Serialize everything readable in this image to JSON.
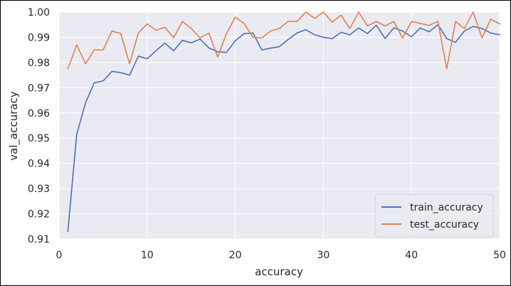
{
  "chart_data": {
    "type": "line",
    "xlabel": "accuracy",
    "ylabel": "val_accuracy",
    "xlim": [
      0,
      50
    ],
    "ylim": [
      0.91,
      1.0
    ],
    "xticks": [
      0,
      10,
      20,
      30,
      40,
      50
    ],
    "yticks": [
      0.91,
      0.92,
      0.93,
      0.94,
      0.95,
      0.96,
      0.97,
      0.98,
      0.99,
      1.0
    ],
    "ytick_labels": [
      "0.91",
      "0.92",
      "0.93",
      "0.94",
      "0.95",
      "0.96",
      "0.97",
      "0.98",
      "0.99",
      "1.00"
    ],
    "xtick_labels": [
      "0",
      "10",
      "20",
      "30",
      "40",
      "50"
    ],
    "grid": true,
    "background": "#eaeaf2",
    "legend_position": "lower-right",
    "x": [
      1,
      2,
      3,
      4,
      5,
      6,
      7,
      8,
      9,
      10,
      11,
      12,
      13,
      14,
      15,
      16,
      17,
      18,
      19,
      20,
      21,
      22,
      23,
      24,
      25,
      26,
      27,
      28,
      29,
      30,
      31,
      32,
      33,
      34,
      35,
      36,
      37,
      38,
      39,
      40,
      41,
      42,
      43,
      44,
      45,
      46,
      47,
      48,
      49,
      50
    ],
    "series": [
      {
        "name": "train_accuracy",
        "color": "#4c72b0",
        "values": [
          0.913,
          0.9515,
          0.964,
          0.972,
          0.9727,
          0.9765,
          0.976,
          0.975,
          0.9825,
          0.9815,
          0.9847,
          0.9877,
          0.9847,
          0.9888,
          0.9878,
          0.9893,
          0.9858,
          0.9843,
          0.984,
          0.9886,
          0.9915,
          0.9917,
          0.985,
          0.9857,
          0.9863,
          0.9891,
          0.9917,
          0.993,
          0.991,
          0.99,
          0.9895,
          0.992,
          0.991,
          0.9937,
          0.9915,
          0.9948,
          0.9895,
          0.9938,
          0.9925,
          0.9902,
          0.9937,
          0.9922,
          0.995,
          0.9895,
          0.988,
          0.9925,
          0.9943,
          0.9935,
          0.9917,
          0.991
        ]
      },
      {
        "name": "test_accuracy",
        "color": "#dd8452",
        "values": [
          0.9775,
          0.987,
          0.9795,
          0.985,
          0.985,
          0.9925,
          0.9915,
          0.9795,
          0.9918,
          0.9953,
          0.9928,
          0.994,
          0.9898,
          0.9963,
          0.9935,
          0.9898,
          0.9917,
          0.9822,
          0.9915,
          0.998,
          0.9955,
          0.99,
          0.9897,
          0.9925,
          0.9935,
          0.9963,
          0.9963,
          1.0,
          0.9975,
          1.0,
          0.996,
          0.9988,
          0.9935,
          1.0,
          0.9945,
          0.9963,
          0.9945,
          0.9963,
          0.9897,
          0.9963,
          0.9955,
          0.9947,
          0.9963,
          0.9775,
          0.9963,
          0.9935,
          1.0,
          0.9898,
          0.9972,
          0.9953
        ]
      }
    ]
  }
}
